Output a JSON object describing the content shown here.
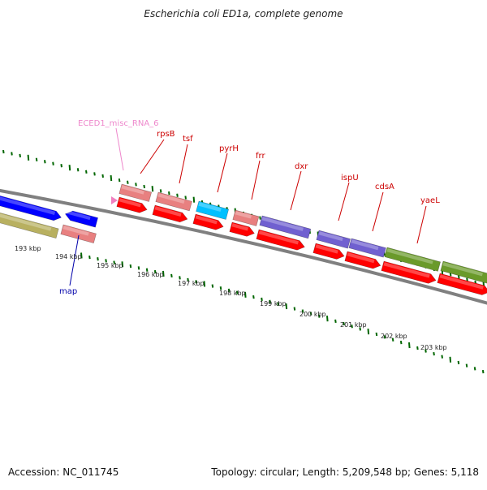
{
  "title": "Escherichia coli ED1a, complete genome",
  "footer": {
    "accession": "Accession: NC_011745",
    "summary": "Topology: circular; Length: 5,209,548 bp; Genes: 5,118"
  },
  "colors": {
    "gene": "#ff0000",
    "rRNA_feature": "#e88080",
    "misc_rna": "#f080c0",
    "tRNA": "#00c0ff",
    "protein_blue": "#0000ff",
    "protein_purple": "#7060d0",
    "protein_olive": "#b8b060",
    "protein_green": "#6a9a2a",
    "tick": "#006600",
    "backbone": "#808080",
    "label_red": "#cc0000",
    "label_blue": "#0000aa",
    "label_pink": "#ee88cc"
  },
  "scale_labels": [
    "193 kbp",
    "194 kbp",
    "195 kbp",
    "196 kbp",
    "197 kbp",
    "198 kbp",
    "199 kbp",
    "200 kbp",
    "201 kbp",
    "202 kbp",
    "203 kbp"
  ],
  "gene_labels": [
    {
      "text": "ECED1_misc_RNA_6",
      "kind": "pink"
    },
    {
      "text": "rpsB",
      "kind": "red"
    },
    {
      "text": "tsf",
      "kind": "red"
    },
    {
      "text": "pyrH",
      "kind": "red"
    },
    {
      "text": "frr",
      "kind": "red"
    },
    {
      "text": "dxr",
      "kind": "red"
    },
    {
      "text": "ispU",
      "kind": "red"
    },
    {
      "text": "cdsA",
      "kind": "red"
    },
    {
      "text": "yaeL",
      "kind": "red"
    },
    {
      "text": "map",
      "kind": "blue"
    }
  ]
}
